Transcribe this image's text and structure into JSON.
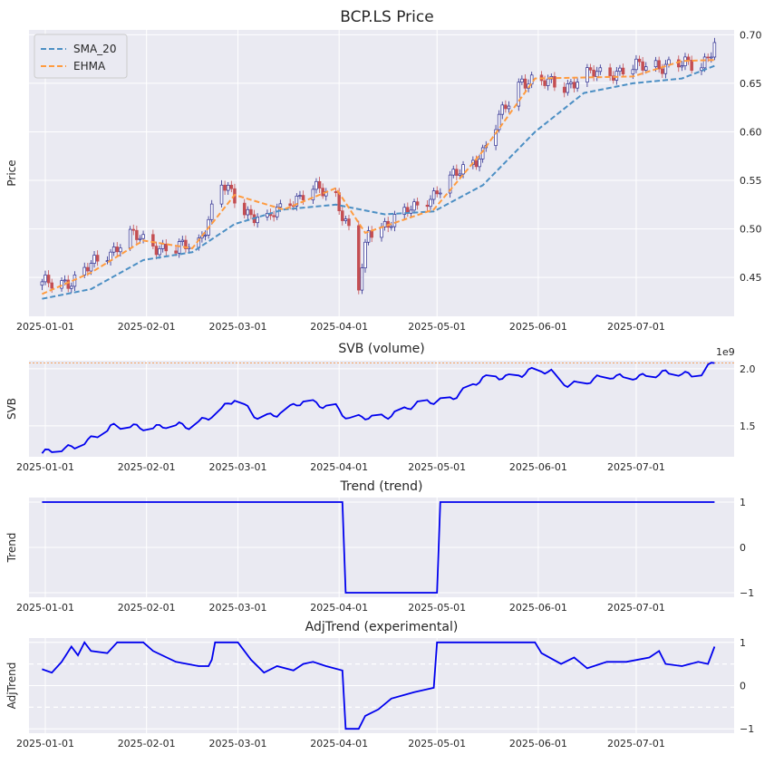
{
  "figure": {
    "title": "BCP.LS Price"
  },
  "colors": {
    "background": "#eaeaf2",
    "grid": "#ffffff",
    "sma": "#4c8fc4",
    "ehma": "#ff9b3f",
    "up": "#2b2b8f",
    "down": "#c44e52",
    "line": "#0000ee",
    "threshold": "#f4a261"
  },
  "chart_data": [
    {
      "id": "price",
      "type": "candlestick",
      "title": "BCP.LS Price",
      "xlabel": "",
      "ylabel": "Price",
      "ylim": [
        0.41,
        0.705
      ],
      "yticks": [
        0.45,
        0.5,
        0.55,
        0.6,
        0.65,
        0.7
      ],
      "ytick_labels": [
        "0.45",
        "0.50",
        "0.55",
        "0.60",
        "0.65",
        "0.70"
      ],
      "x_range": [
        "2024-12-27",
        "2025-07-31"
      ],
      "xticks": [
        "2025-01-01",
        "2025-02-01",
        "2025-03-01",
        "2025-04-01",
        "2025-05-01",
        "2025-06-01",
        "2025-07-01"
      ],
      "legend": {
        "placement": "top-left",
        "entries": [
          "SMA_20",
          "EHMA"
        ]
      },
      "anchors": [
        [
          "2024-12-31",
          0.442
        ],
        [
          "2025-01-10",
          0.448
        ],
        [
          "2025-01-20",
          0.475
        ],
        [
          "2025-01-27",
          0.493
        ],
        [
          "2025-02-03",
          0.484
        ],
        [
          "2025-02-10",
          0.478
        ],
        [
          "2025-02-17",
          0.487
        ],
        [
          "2025-02-24",
          0.545
        ],
        [
          "2025-03-03",
          0.52
        ],
        [
          "2025-03-10",
          0.508
        ],
        [
          "2025-03-17",
          0.53
        ],
        [
          "2025-03-24",
          0.54
        ],
        [
          "2025-03-31",
          0.534
        ],
        [
          "2025-04-04",
          0.5
        ],
        [
          "2025-04-07",
          0.44
        ],
        [
          "2025-04-10",
          0.495
        ],
        [
          "2025-04-17",
          0.51
        ],
        [
          "2025-04-24",
          0.52
        ],
        [
          "2025-05-01",
          0.54
        ],
        [
          "2025-05-08",
          0.558
        ],
        [
          "2025-05-15",
          0.58
        ],
        [
          "2025-05-22",
          0.625
        ],
        [
          "2025-05-27",
          0.655
        ],
        [
          "2025-06-02",
          0.65
        ],
        [
          "2025-06-09",
          0.648
        ],
        [
          "2025-06-16",
          0.658
        ],
        [
          "2025-06-23",
          0.662
        ],
        [
          "2025-06-30",
          0.665
        ],
        [
          "2025-07-07",
          0.67
        ],
        [
          "2025-07-14",
          0.668
        ],
        [
          "2025-07-21",
          0.67
        ],
        [
          "2025-07-25",
          0.69
        ]
      ],
      "series": [
        {
          "name": "SMA_20",
          "style": "dashed",
          "points": [
            [
              "2024-12-31",
              0.428
            ],
            [
              "2025-01-15",
              0.438
            ],
            [
              "2025-01-31",
              0.468
            ],
            [
              "2025-02-15",
              0.476
            ],
            [
              "2025-02-28",
              0.505
            ],
            [
              "2025-03-15",
              0.52
            ],
            [
              "2025-03-31",
              0.525
            ],
            [
              "2025-04-15",
              0.515
            ],
            [
              "2025-04-30",
              0.518
            ],
            [
              "2025-05-15",
              0.545
            ],
            [
              "2025-05-31",
              0.6
            ],
            [
              "2025-06-15",
              0.64
            ],
            [
              "2025-06-30",
              0.65
            ],
            [
              "2025-07-15",
              0.655
            ],
            [
              "2025-07-25",
              0.668
            ]
          ]
        },
        {
          "name": "EHMA",
          "style": "dashed",
          "points": [
            [
              "2024-12-31",
              0.433
            ],
            [
              "2025-01-15",
              0.455
            ],
            [
              "2025-01-31",
              0.488
            ],
            [
              "2025-02-15",
              0.48
            ],
            [
              "2025-02-28",
              0.535
            ],
            [
              "2025-03-15",
              0.52
            ],
            [
              "2025-03-31",
              0.542
            ],
            [
              "2025-04-09",
              0.496
            ],
            [
              "2025-04-30",
              0.52
            ],
            [
              "2025-05-15",
              0.58
            ],
            [
              "2025-05-31",
              0.655
            ],
            [
              "2025-06-15",
              0.656
            ],
            [
              "2025-06-30",
              0.657
            ],
            [
              "2025-07-15",
              0.673
            ],
            [
              "2025-07-25",
              0.674
            ]
          ]
        }
      ]
    },
    {
      "id": "svb",
      "type": "line",
      "title": "SVB (volume)",
      "xlabel": "",
      "ylabel": "SVB",
      "offset_label": "1e9",
      "ylim": [
        1.23,
        2.07
      ],
      "yticks": [
        1.5,
        2.0
      ],
      "ytick_labels": [
        "1.5",
        "2.0"
      ],
      "threshold": 2.05,
      "x_range": [
        "2024-12-27",
        "2025-07-31"
      ],
      "xticks": [
        "2025-01-01",
        "2025-02-01",
        "2025-03-01",
        "2025-04-01",
        "2025-05-01",
        "2025-06-01",
        "2025-07-01"
      ],
      "anchors": [
        [
          "2024-12-31",
          1.26
        ],
        [
          "2025-01-07",
          1.29
        ],
        [
          "2025-01-21",
          1.48
        ],
        [
          "2025-01-31",
          1.5
        ],
        [
          "2025-02-14",
          1.49
        ],
        [
          "2025-02-28",
          1.72
        ],
        [
          "2025-03-07",
          1.58
        ],
        [
          "2025-03-14",
          1.62
        ],
        [
          "2025-03-21",
          1.7
        ],
        [
          "2025-03-31",
          1.68
        ],
        [
          "2025-04-04",
          1.55
        ],
        [
          "2025-04-14",
          1.58
        ],
        [
          "2025-04-22",
          1.66
        ],
        [
          "2025-04-29",
          1.7
        ],
        [
          "2025-05-05",
          1.75
        ],
        [
          "2025-05-15",
          1.9
        ],
        [
          "2025-05-30",
          1.98
        ],
        [
          "2025-06-05",
          1.96
        ],
        [
          "2025-06-09",
          1.87
        ],
        [
          "2025-06-20",
          1.91
        ],
        [
          "2025-06-30",
          1.94
        ],
        [
          "2025-07-10",
          1.95
        ],
        [
          "2025-07-20",
          1.96
        ],
        [
          "2025-07-25",
          2.06
        ]
      ]
    },
    {
      "id": "trend",
      "type": "line",
      "title": "Trend (trend)",
      "xlabel": "",
      "ylabel": "Trend",
      "ylim": [
        -1.1,
        1.1
      ],
      "yticks": [
        -1,
        0,
        1
      ],
      "ytick_labels": [
        "−1",
        "0",
        "1"
      ],
      "x_range": [
        "2024-12-27",
        "2025-07-31"
      ],
      "xticks": [
        "2025-01-01",
        "2025-02-01",
        "2025-03-01",
        "2025-04-01",
        "2025-05-01",
        "2025-06-01",
        "2025-07-01"
      ],
      "points": [
        [
          "2024-12-31",
          1
        ],
        [
          "2025-04-02",
          1
        ],
        [
          "2025-04-03",
          -1
        ],
        [
          "2025-05-01",
          -1
        ],
        [
          "2025-05-02",
          1
        ],
        [
          "2025-07-25",
          1
        ]
      ]
    },
    {
      "id": "adjtrend",
      "type": "line",
      "title": "AdjTrend (experimental)",
      "xlabel": "",
      "ylabel": "AdjTrend",
      "ylim": [
        -1.1,
        1.1
      ],
      "yticks": [
        -1,
        0,
        1
      ],
      "ytick_labels": [
        "−1",
        "0",
        "1"
      ],
      "reference_lines": [
        0.5,
        -0.5
      ],
      "x_range": [
        "2024-12-27",
        "2025-07-31"
      ],
      "xticks": [
        "2025-01-01",
        "2025-02-01",
        "2025-03-01",
        "2025-04-01",
        "2025-05-01",
        "2025-06-01",
        "2025-07-01"
      ],
      "points": [
        [
          "2024-12-31",
          0.38
        ],
        [
          "2025-01-03",
          0.3
        ],
        [
          "2025-01-06",
          0.55
        ],
        [
          "2025-01-09",
          0.9
        ],
        [
          "2025-01-11",
          0.7
        ],
        [
          "2025-01-13",
          1.0
        ],
        [
          "2025-01-15",
          0.8
        ],
        [
          "2025-01-20",
          0.75
        ],
        [
          "2025-01-23",
          1.0
        ],
        [
          "2025-01-31",
          1.0
        ],
        [
          "2025-02-03",
          0.8
        ],
        [
          "2025-02-10",
          0.55
        ],
        [
          "2025-02-17",
          0.45
        ],
        [
          "2025-02-20",
          0.45
        ],
        [
          "2025-02-21",
          0.6
        ],
        [
          "2025-02-22",
          1.0
        ],
        [
          "2025-03-01",
          1.0
        ],
        [
          "2025-03-05",
          0.6
        ],
        [
          "2025-03-09",
          0.3
        ],
        [
          "2025-03-13",
          0.45
        ],
        [
          "2025-03-18",
          0.35
        ],
        [
          "2025-03-21",
          0.5
        ],
        [
          "2025-03-24",
          0.55
        ],
        [
          "2025-03-28",
          0.45
        ],
        [
          "2025-04-02",
          0.35
        ],
        [
          "2025-04-03",
          -1.0
        ],
        [
          "2025-04-07",
          -1.0
        ],
        [
          "2025-04-09",
          -0.7
        ],
        [
          "2025-04-13",
          -0.55
        ],
        [
          "2025-04-17",
          -0.3
        ],
        [
          "2025-04-24",
          -0.15
        ],
        [
          "2025-04-30",
          -0.05
        ],
        [
          "2025-05-01",
          1.0
        ],
        [
          "2025-05-05",
          1.0
        ],
        [
          "2025-05-31",
          1.0
        ],
        [
          "2025-06-02",
          0.75
        ],
        [
          "2025-06-08",
          0.5
        ],
        [
          "2025-06-12",
          0.65
        ],
        [
          "2025-06-16",
          0.4
        ],
        [
          "2025-06-22",
          0.55
        ],
        [
          "2025-06-28",
          0.55
        ],
        [
          "2025-07-05",
          0.65
        ],
        [
          "2025-07-08",
          0.8
        ],
        [
          "2025-07-10",
          0.5
        ],
        [
          "2025-07-15",
          0.45
        ],
        [
          "2025-07-20",
          0.55
        ],
        [
          "2025-07-23",
          0.5
        ],
        [
          "2025-07-25",
          0.9
        ]
      ]
    }
  ]
}
